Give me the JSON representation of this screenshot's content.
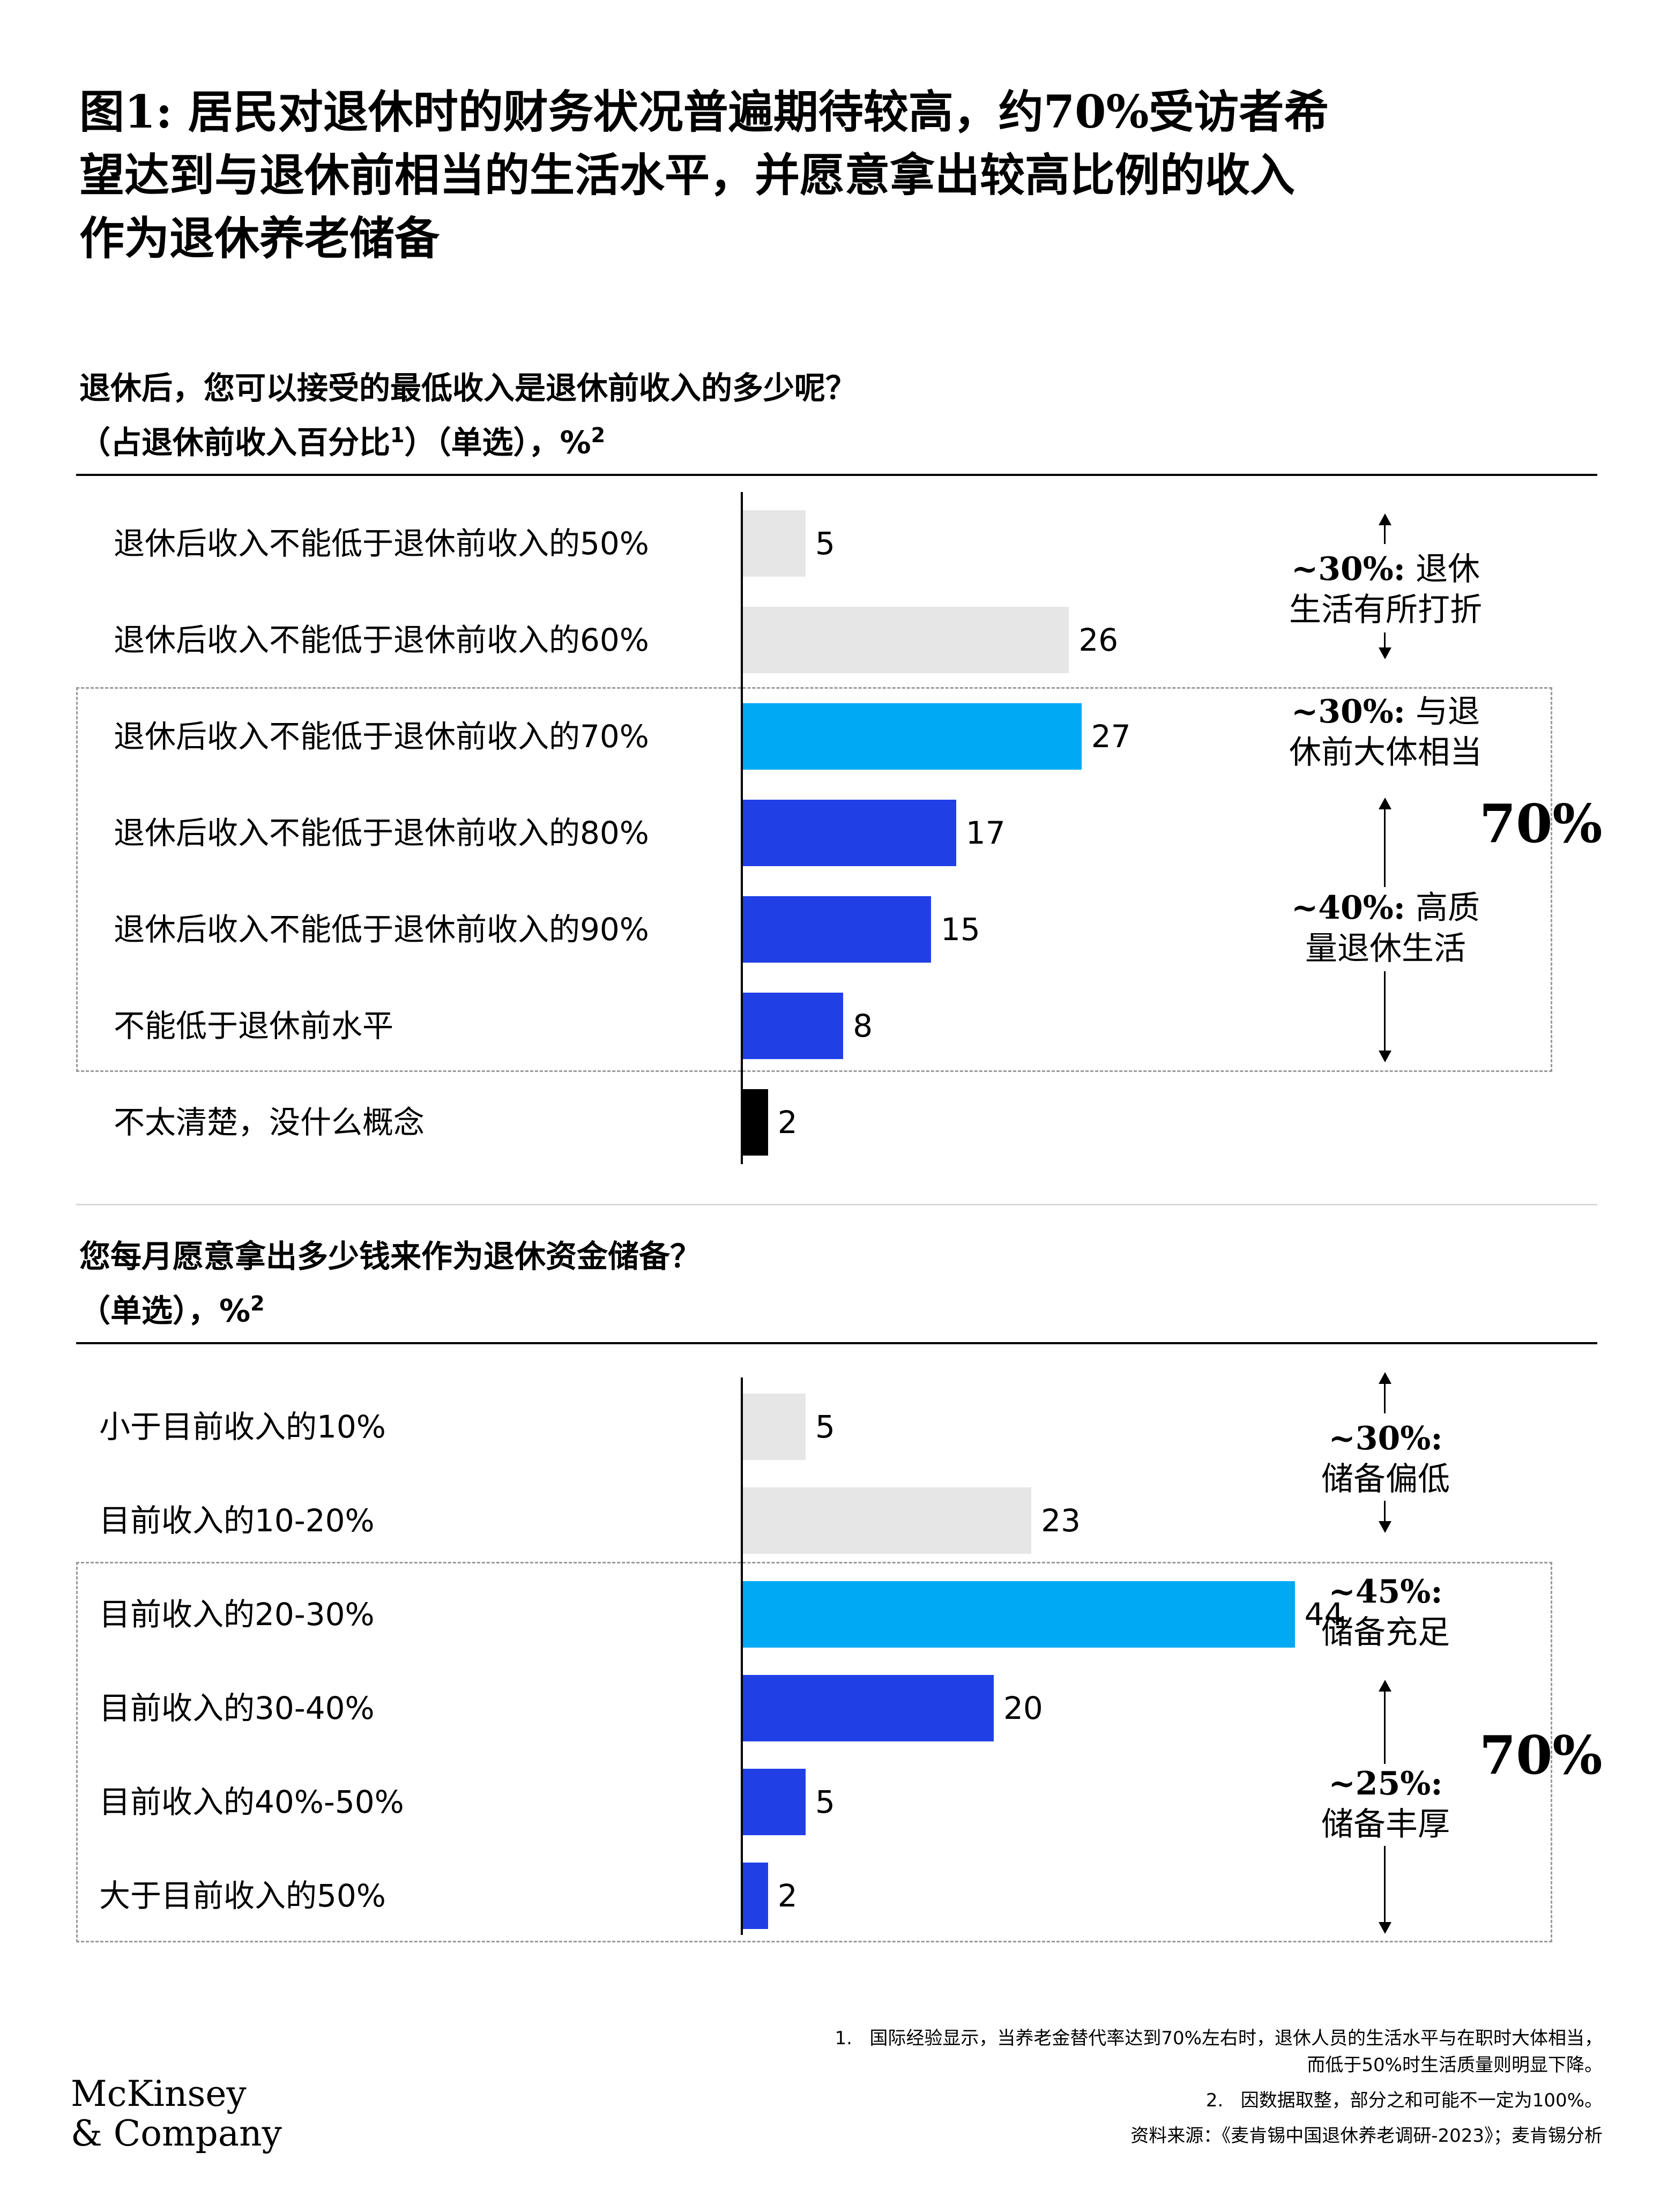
{
  "title_lines": [
    "图1: 居民对退休时的财务状况普遍期待较高，约70%受访者希",
    "望达到与退休前相当的生活水平，并愿意拿出较高比例的收入",
    "作为退休养老储备"
  ],
  "colors": {
    "light_gray": "#e6e6e6",
    "cyan": "#00a9f4",
    "blue": "#2040e6",
    "black": "#000000"
  },
  "chart_data": [
    {
      "type": "bar",
      "orientation": "horizontal",
      "title_line1": "退休后，您可以接受的最低收入是退休前收入的多少呢？",
      "title_line2": "（占退休前收入百分比",
      "title_sup1": "1",
      "title_line2_end": "）（单选），%",
      "title_sup2": "2",
      "categories": [
        "退休后收入不能低于退休前收入的50%",
        "退休后收入不能低于退休前收入的60%",
        "退休后收入不能低于退休前收入的70%",
        "退休后收入不能低于退休前收入的80%",
        "退休后收入不能低于退休前收入的90%",
        "不能低于退休前水平",
        "不太清楚，没什么概念"
      ],
      "values": [
        5,
        26,
        27,
        17,
        15,
        8,
        2
      ],
      "bar_colors": [
        "#e6e6e6",
        "#e6e6e6",
        "#00a9f4",
        "#2040e6",
        "#2040e6",
        "#2040e6",
        "#000000"
      ],
      "annotations": [
        {
          "pct": "~30%:",
          "text": "退休",
          "line2": "生活有所打折"
        },
        {
          "pct": "~30%:",
          "text": "与退",
          "line2": "休前大体相当"
        },
        {
          "pct": "~40%:",
          "text": "高质",
          "line2": "量退休生活"
        }
      ],
      "total_label": "70%"
    },
    {
      "type": "bar",
      "orientation": "horizontal",
      "title_line1": "您每月愿意拿出多少钱来作为退休资金储备？",
      "title_line2": "（单选），%",
      "title_sup2": "2",
      "categories": [
        "小于目前收入的10%",
        "目前收入的10-20%",
        "目前收入的20-30%",
        "目前收入的30-40%",
        "目前收入的40%-50%",
        "大于目前收入的50%"
      ],
      "values": [
        5,
        23,
        44,
        20,
        5,
        2
      ],
      "bar_colors": [
        "#e6e6e6",
        "#e6e6e6",
        "#00a9f4",
        "#2040e6",
        "#2040e6",
        "#2040e6"
      ],
      "annotations": [
        {
          "pct": "~30%:",
          "line2": "储备偏低"
        },
        {
          "pct": "~45%:",
          "line2": "储备充足"
        },
        {
          "pct": "~25%:",
          "line2": "储备丰厚"
        }
      ],
      "total_label": "70%"
    }
  ],
  "footnotes": {
    "note1_num": "1.",
    "note1_line1": "国际经验显示，当养老金替代率达到70%左右时，退休人员的生活水平与在职时大体相当，",
    "note1_line2": "而低于50%时生活质量则明显下降。",
    "note2_num": "2.",
    "note2_text": "因数据取整，部分之和可能不一定为100%。",
    "source": "资料来源：《麦肯锡中国退休养老调研-2023》；麦肯锡分析"
  },
  "logo": {
    "line1": "McKinsey",
    "line2": "& Company"
  }
}
